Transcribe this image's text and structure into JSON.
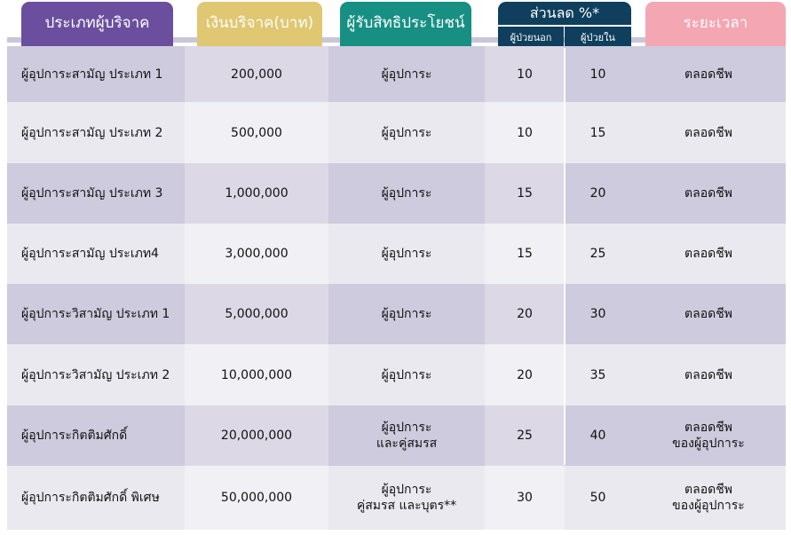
{
  "headers": {
    "category": "ประเภทผู้บริจาค",
    "donation": "เงินบริจาค(บาท)",
    "beneficiary": "ผู้รับสิทธิประโยชน์",
    "discount": "ส่วนลด %*",
    "outpatient": "ผู้ป่วยนอก",
    "inpatient": "ผู้ป่วยใน",
    "duration": "ระยะเวลา"
  },
  "colors": {
    "category_tab": "#6b4f9e",
    "donation_tab": "#e0c772",
    "beneficiary_tab": "#178f83",
    "discount_tab": "#0f3f5d",
    "duration_tab": "#f4a6b2",
    "row_dark": "#cdcbdd",
    "row_light": "#e9e9ef",
    "col_dark": "#e2dfe6",
    "col_light": "#f3f3f5"
  },
  "rows": [
    {
      "category": "ผู้อุปการะสามัญ ประเภท 1",
      "donation": "200,000",
      "beneficiary": [
        "ผู้อุปการะ"
      ],
      "outpatient": "10",
      "inpatient": "10",
      "duration": [
        "ตลอดชีพ"
      ]
    },
    {
      "category": "ผู้อุปการะสามัญ ประเภท 2",
      "donation": "500,000",
      "beneficiary": [
        "ผู้อุปการะ"
      ],
      "outpatient": "10",
      "inpatient": "15",
      "duration": [
        "ตลอดชีพ"
      ]
    },
    {
      "category": "ผู้อุปการะสามัญ ประเภท 3",
      "donation": "1,000,000",
      "beneficiary": [
        "ผู้อุปการะ"
      ],
      "outpatient": "15",
      "inpatient": "20",
      "duration": [
        "ตลอดชีพ"
      ]
    },
    {
      "category": "ผู้อุปการะสามัญ ประเภท4",
      "donation": "3,000,000",
      "beneficiary": [
        "ผู้อุปการะ"
      ],
      "outpatient": "15",
      "inpatient": "25",
      "duration": [
        "ตลอดชีพ"
      ]
    },
    {
      "category": "ผู้อุปการะวิสามัญ ประเภท 1",
      "donation": "5,000,000",
      "beneficiary": [
        "ผู้อุปการะ"
      ],
      "outpatient": "20",
      "inpatient": "30",
      "duration": [
        "ตลอดชีพ"
      ]
    },
    {
      "category": "ผู้อุปการะวิสามัญ ประเภท 2",
      "donation": "10,000,000",
      "beneficiary": [
        "ผู้อุปการะ"
      ],
      "outpatient": "20",
      "inpatient": "35",
      "duration": [
        "ตลอดชีพ"
      ]
    },
    {
      "category": "ผู้อุปการะกิตติมศักดิ์",
      "donation": "20,000,000",
      "beneficiary": [
        "ผู้อุปการะ",
        "และคู่สมรส"
      ],
      "outpatient": "25",
      "inpatient": "40",
      "duration": [
        "ตลอดชีพ",
        "ของผู้อุปการะ"
      ]
    },
    {
      "category": "ผู้อุปการะกิตติมศักดิ์ พิเศษ",
      "donation": "50,000,000",
      "beneficiary": [
        "ผู้อุปการะ",
        "คู่สมรส และบุตร**"
      ],
      "outpatient": "30",
      "inpatient": "50",
      "duration": [
        "ตลอดชีพ",
        "ของผู้อุปการะ"
      ]
    }
  ]
}
